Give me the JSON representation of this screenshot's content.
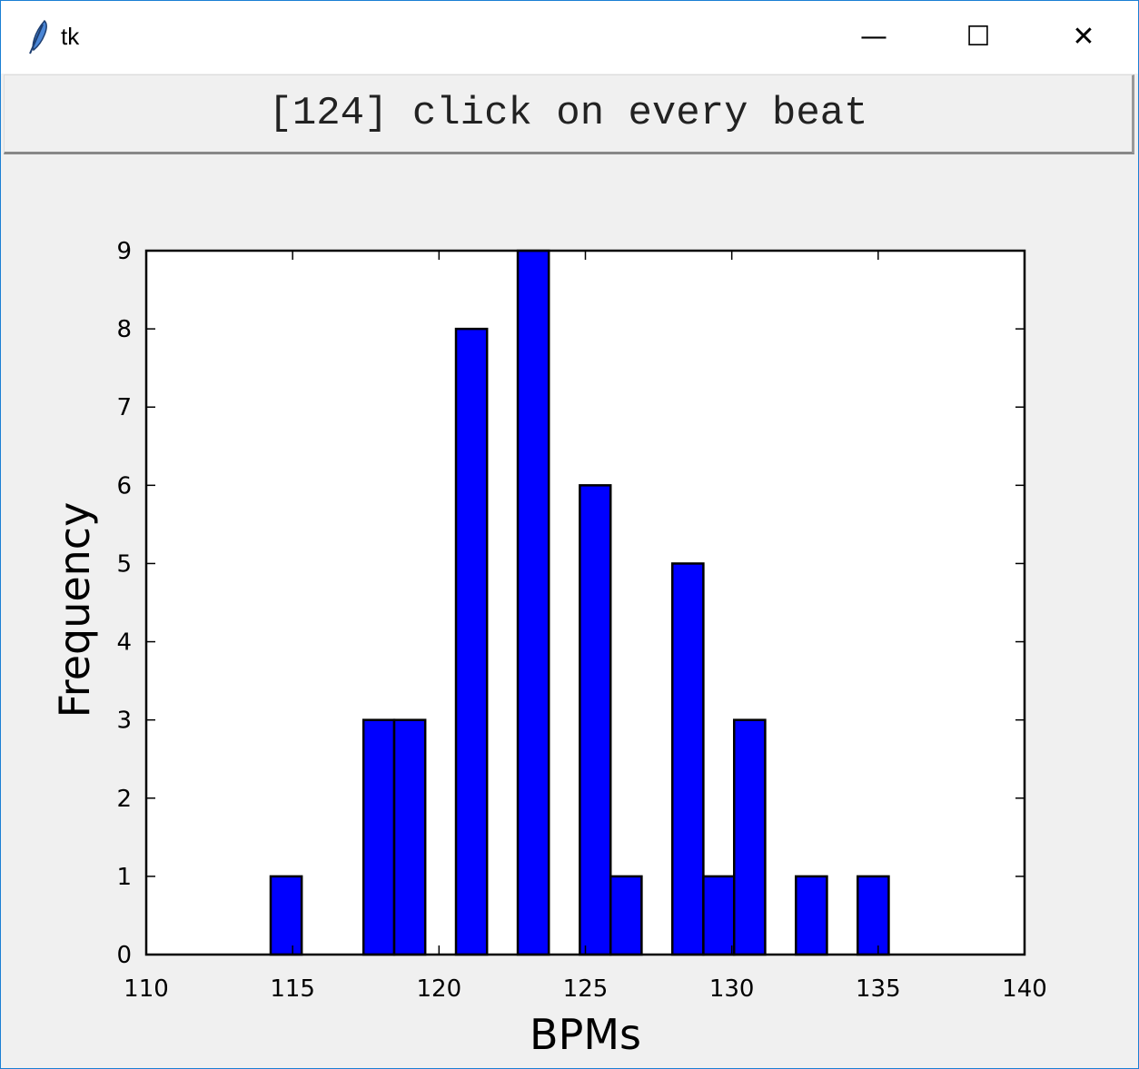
{
  "window": {
    "title": "tk",
    "icon": "feather-icon",
    "minimize": "—",
    "maximize": "☐",
    "close": "✕"
  },
  "button": {
    "label": "[124] click on every beat"
  },
  "chart_data": {
    "type": "bar",
    "subtype": "histogram",
    "title": "",
    "xlabel": "BPMs",
    "ylabel": "Frequency",
    "xlim": [
      110,
      140
    ],
    "ylim": [
      0,
      9
    ],
    "xticks": [
      "110",
      "115",
      "120",
      "125",
      "130",
      "135",
      "140"
    ],
    "yticks": [
      "0",
      "1",
      "2",
      "3",
      "4",
      "5",
      "6",
      "7",
      "8",
      "9"
    ],
    "grid": false,
    "bar_color": "#0000ff",
    "edge_color": "#000000",
    "bars": [
      {
        "x_start": 114.25,
        "x_end": 115.31,
        "count": 1
      },
      {
        "x_start": 117.42,
        "x_end": 118.47,
        "count": 3
      },
      {
        "x_start": 118.47,
        "x_end": 119.53,
        "count": 3
      },
      {
        "x_start": 120.58,
        "x_end": 121.64,
        "count": 8
      },
      {
        "x_start": 122.69,
        "x_end": 123.75,
        "count": 9
      },
      {
        "x_start": 124.81,
        "x_end": 125.86,
        "count": 6
      },
      {
        "x_start": 125.86,
        "x_end": 126.92,
        "count": 1
      },
      {
        "x_start": 127.97,
        "x_end": 129.03,
        "count": 5
      },
      {
        "x_start": 129.03,
        "x_end": 130.08,
        "count": 1
      },
      {
        "x_start": 130.08,
        "x_end": 131.14,
        "count": 3
      },
      {
        "x_start": 132.19,
        "x_end": 133.25,
        "count": 1
      },
      {
        "x_start": 134.3,
        "x_end": 135.36,
        "count": 1
      }
    ]
  }
}
